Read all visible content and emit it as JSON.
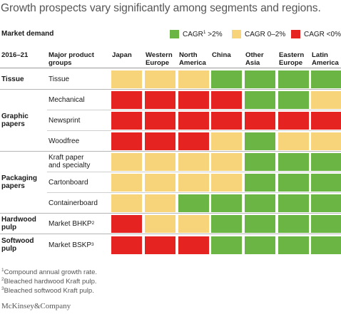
{
  "chart_data": {
    "type": "heatmap",
    "title": "Growth prospects vary significantly among segments and regions.",
    "legend_title": "Market demand",
    "legend": [
      {
        "key": "high",
        "label": "CAGR",
        "sup": "1",
        "suffix": " >2%",
        "color": "#6ab544"
      },
      {
        "key": "mid",
        "label": "CAGR 0–2%",
        "sup": "",
        "suffix": "",
        "color": "#f7d47a"
      },
      {
        "key": "low",
        "label": "CAGR <0%",
        "sup": "",
        "suffix": "",
        "color": "#e52421"
      }
    ],
    "header": {
      "period": "2016–21",
      "products": "Major product\ngroups"
    },
    "regions": [
      "Japan",
      "Western\nEurope",
      "North\nAmerica",
      "China",
      "Other\nAsia",
      "Eastern\nEurope",
      "Latin\nAmerica"
    ],
    "segments": [
      {
        "name": "Tissue",
        "rows": [
          {
            "product": "Tissue",
            "sup": "",
            "values": [
              "mid",
              "mid",
              "mid",
              "high",
              "high",
              "high",
              "high"
            ]
          }
        ]
      },
      {
        "name": "Graphic\npapers",
        "rows": [
          {
            "product": "Mechanical",
            "sup": "",
            "values": [
              "low",
              "low",
              "low",
              "low",
              "high",
              "high",
              "mid"
            ]
          },
          {
            "product": "Newsprint",
            "sup": "",
            "values": [
              "low",
              "low",
              "low",
              "low",
              "low",
              "low",
              "low"
            ]
          },
          {
            "product": "Woodfree",
            "sup": "",
            "values": [
              "low",
              "low",
              "low",
              "mid",
              "high",
              "mid",
              "mid"
            ]
          }
        ]
      },
      {
        "name": "Packaging\npapers",
        "rows": [
          {
            "product": "Kraft paper\nand specialty",
            "sup": "",
            "values": [
              "mid",
              "mid",
              "mid",
              "mid",
              "high",
              "high",
              "high"
            ]
          },
          {
            "product": "Cartonboard",
            "sup": "",
            "values": [
              "mid",
              "mid",
              "mid",
              "mid",
              "high",
              "high",
              "high"
            ]
          },
          {
            "product": "Containerboard",
            "sup": "",
            "values": [
              "mid",
              "mid",
              "high",
              "high",
              "high",
              "high",
              "high"
            ]
          }
        ]
      },
      {
        "name": "Hardwood\npulp",
        "rows": [
          {
            "product": "Market BHKP",
            "sup": "2",
            "values": [
              "low",
              "mid",
              "mid",
              "high",
              "high",
              "high",
              "high"
            ]
          }
        ]
      },
      {
        "name": "Softwood\npulp",
        "rows": [
          {
            "product": "Market BSKP",
            "sup": "3",
            "values": [
              "low",
              "low",
              "low",
              "high",
              "high",
              "high",
              "high"
            ]
          }
        ]
      }
    ]
  },
  "footnotes": [
    {
      "sup": "1",
      "text": "Compound annual growth rate."
    },
    {
      "sup": "2",
      "text": "Bleached hardwood Kraft pulp."
    },
    {
      "sup": "3",
      "text": "Bleached softwood Kraft pulp."
    }
  ],
  "brand": "McKinsey&Company"
}
